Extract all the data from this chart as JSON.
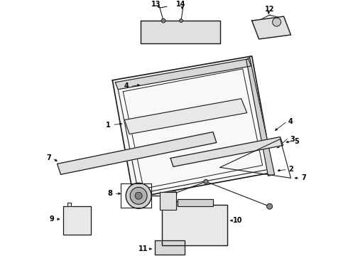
{
  "bg_color": "#ffffff",
  "lc": "#1a1a1a",
  "lw": 0.8,
  "fig_w": 4.9,
  "fig_h": 3.6,
  "dpi": 100
}
